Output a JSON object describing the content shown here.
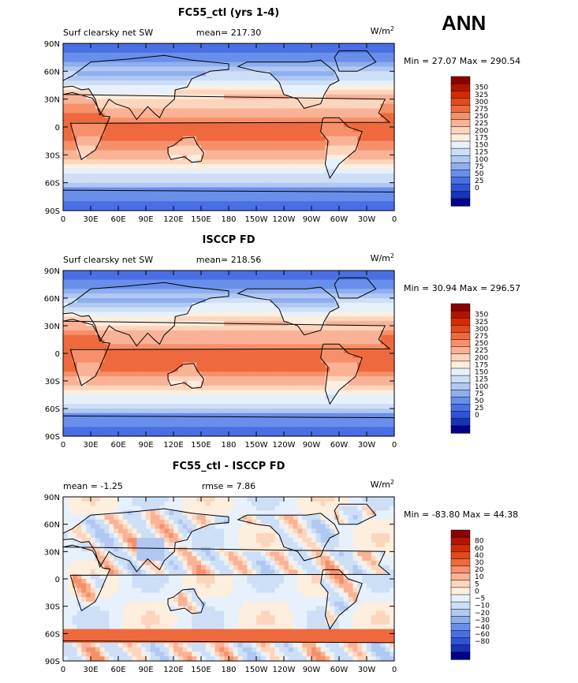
{
  "season_label": "ANN",
  "chart_data": [
    {
      "type": "heatmap",
      "title": "FC55_ctl (yrs 1-4)",
      "left_label": "Surf clearsky net SW",
      "center_label": "mean= 217.30",
      "units": "W/m",
      "units_sup": "2",
      "minmax_label": "Min =  27.07 Max = 290.54",
      "lat_ticks": [
        "90N",
        "60N",
        "30N",
        "0",
        "30S",
        "60S",
        "90S"
      ],
      "lon_ticks": [
        "0",
        "30E",
        "60E",
        "90E",
        "120E",
        "150E",
        "180",
        "150W",
        "120W",
        "90W",
        "60W",
        "30W",
        "0"
      ],
      "colorbar": {
        "labels": [
          "350",
          "325",
          "300",
          "275",
          "250",
          "225",
          "200",
          "175",
          "150",
          "125",
          "100",
          "75",
          "50",
          "25",
          "0"
        ],
        "colors": [
          "#8b0000",
          "#b31400",
          "#d42c00",
          "#e2491c",
          "#ee6a3e",
          "#f6906a",
          "#f9b296",
          "#fcd5bd",
          "#fdeede",
          "#e6f1fc",
          "#cddff7",
          "#b0c8f2",
          "#8eaeee",
          "#6a8feb",
          "#4a6fe4",
          "#2f52d8",
          "#1634b8",
          "#00008b"
        ],
        "colorbar_keys": [
          360,
          335,
          315,
          290,
          265,
          240,
          215,
          190,
          165,
          140,
          115,
          90,
          65,
          40,
          15,
          0
        ]
      },
      "field": {
        "model": "net_sw",
        "equator_value": 280,
        "polar_value": 30
      }
    },
    {
      "type": "heatmap",
      "title": "ISCCP FD",
      "left_label": "Surf clearsky net SW",
      "center_label": "mean= 218.56",
      "units": "W/m",
      "units_sup": "2",
      "minmax_label": "Min =  30.94 Max = 296.57",
      "lat_ticks": [
        "90N",
        "60N",
        "30N",
        "0",
        "30S",
        "60S",
        "90S"
      ],
      "lon_ticks": [
        "0",
        "30E",
        "60E",
        "90E",
        "120E",
        "150E",
        "180",
        "150W",
        "120W",
        "90W",
        "60W",
        "30W",
        "0"
      ],
      "colorbar": {
        "labels": [
          "350",
          "325",
          "300",
          "275",
          "250",
          "225",
          "200",
          "175",
          "150",
          "125",
          "100",
          "75",
          "50",
          "25",
          "0"
        ],
        "colors": [
          "#8b0000",
          "#b31400",
          "#d42c00",
          "#e2491c",
          "#ee6a3e",
          "#f6906a",
          "#f9b296",
          "#fcd5bd",
          "#fdeede",
          "#e6f1fc",
          "#cddff7",
          "#b0c8f2",
          "#8eaeee",
          "#6a8feb",
          "#4a6fe4",
          "#2f52d8",
          "#1634b8",
          "#00008b"
        ]
      },
      "field": {
        "model": "net_sw",
        "equator_value": 285,
        "polar_value": 32
      }
    },
    {
      "type": "heatmap",
      "title": "FC55_ctl - ISCCP FD",
      "left_label": "mean =   -1.25",
      "center_label": "rmse =    7.86",
      "units": "W/m",
      "units_sup": "2",
      "minmax_label": "Min = -83.80 Max =  44.38",
      "lat_ticks": [
        "90N",
        "60N",
        "30N",
        "0",
        "30S",
        "60S",
        "90S"
      ],
      "lon_ticks": [
        "0",
        "30E",
        "60E",
        "90E",
        "120E",
        "150E",
        "180",
        "150W",
        "120W",
        "90W",
        "60W",
        "30W",
        "0"
      ],
      "colorbar": {
        "labels": [
          "80",
          "60",
          "40",
          "30",
          "20",
          "10",
          "5",
          "0",
          "−5",
          "−10",
          "−20",
          "−30",
          "−40",
          "−60",
          "−80"
        ],
        "colors": [
          "#8b0000",
          "#b31400",
          "#d42c00",
          "#e2491c",
          "#ee6a3e",
          "#f6906a",
          "#f9b296",
          "#fcd5bd",
          "#fdeede",
          "#e6f1fc",
          "#cddff7",
          "#b0c8f2",
          "#8eaeee",
          "#6a8feb",
          "#4a6fe4",
          "#2f52d8",
          "#1634b8",
          "#00008b"
        ]
      },
      "field": {
        "model": "diff"
      }
    }
  ]
}
